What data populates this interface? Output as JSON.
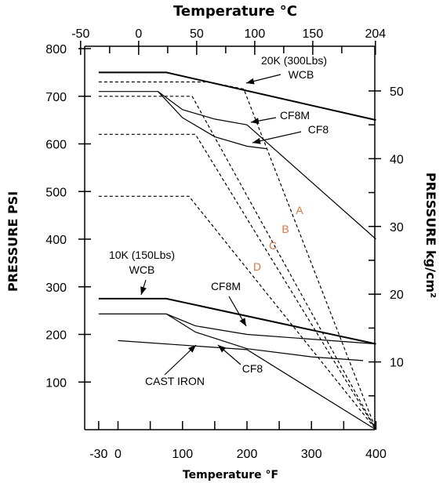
{
  "chart_data": {
    "type": "line",
    "title_top": "Temperature °C",
    "xlabel": "Temperature °F",
    "ylabel_left": "PRESSURE PSI",
    "ylabel_right": "PRESSURE kg/cm²",
    "x_range_f": [
      -40,
      400
    ],
    "y_range_psi": [
      0,
      800
    ],
    "x_ticks_f_labeled": [
      -30,
      0,
      100,
      200,
      300,
      400
    ],
    "x_ticks_f_minor": [
      50,
      150,
      250,
      350
    ],
    "y_ticks_psi_labeled": [
      100,
      200,
      300,
      400,
      500,
      600,
      700,
      800
    ],
    "x_ticks_c_labeled": [
      -50,
      0,
      50,
      100,
      150,
      204
    ],
    "y_ticks_kg_labeled": [
      10,
      20,
      30,
      40,
      50
    ],
    "series": [
      {
        "name": "20K (300Lbs) WCB",
        "style": "heavy",
        "points": [
          [
            -30,
            750
          ],
          [
            75,
            750
          ],
          [
            400,
            650
          ]
        ]
      },
      {
        "name": "20K CF8M",
        "style": "solid",
        "points": [
          [
            -30,
            710
          ],
          [
            62,
            710
          ],
          [
            100,
            672
          ],
          [
            150,
            652
          ],
          [
            200,
            640
          ],
          [
            400,
            400
          ]
        ]
      },
      {
        "name": "20K CF8",
        "style": "solid",
        "points": [
          [
            62,
            710
          ],
          [
            100,
            655
          ],
          [
            150,
            615
          ],
          [
            200,
            595
          ],
          [
            230,
            590
          ]
        ]
      },
      {
        "name": "10K (150Lbs) WCB",
        "style": "heavy",
        "points": [
          [
            -30,
            275
          ],
          [
            75,
            275
          ],
          [
            400,
            180
          ]
        ]
      },
      {
        "name": "10K CF8M",
        "style": "solid",
        "points": [
          [
            -30,
            243
          ],
          [
            75,
            243
          ],
          [
            120,
            218
          ],
          [
            200,
            200
          ],
          [
            400,
            180
          ]
        ]
      },
      {
        "name": "10K CF8",
        "style": "solid",
        "points": [
          [
            75,
            243
          ],
          [
            120,
            205
          ],
          [
            200,
            170
          ],
          [
            300,
            153
          ],
          [
            380,
            145
          ]
        ]
      },
      {
        "name": "CAST IRON",
        "style": "solid",
        "points": [
          [
            0,
            187
          ],
          [
            200,
            168
          ],
          [
            400,
            0
          ]
        ]
      },
      {
        "name": "A",
        "style": "dashed",
        "points": [
          [
            -30,
            730
          ],
          [
            140,
            730
          ],
          [
            195,
            715
          ],
          [
            400,
            0
          ]
        ]
      },
      {
        "name": "B",
        "style": "dashed",
        "points": [
          [
            -30,
            700
          ],
          [
            115,
            700
          ],
          [
            400,
            0
          ]
        ]
      },
      {
        "name": "C",
        "style": "dashed",
        "points": [
          [
            -30,
            620
          ],
          [
            120,
            620
          ],
          [
            400,
            0
          ]
        ]
      },
      {
        "name": "D",
        "style": "dashed",
        "points": [
          [
            -30,
            490
          ],
          [
            110,
            490
          ],
          [
            400,
            0
          ]
        ]
      }
    ],
    "annotations": [
      {
        "text": "20K (300Lbs)",
        "color": "#000000"
      },
      {
        "text": "WCB",
        "color": "#000000"
      },
      {
        "text": "CF8M",
        "color": "#000000"
      },
      {
        "text": "CF8",
        "color": "#000000"
      },
      {
        "text": "A",
        "color": "#e8703a"
      },
      {
        "text": "B",
        "color": "#e8703a"
      },
      {
        "text": "C",
        "color": "#e8703a"
      },
      {
        "text": "D",
        "color": "#e8703a"
      },
      {
        "text": "10K (150Lbs)",
        "color": "#000000"
      },
      {
        "text": "WCB",
        "color": "#000000"
      },
      {
        "text": "CF8M",
        "color": "#000000"
      },
      {
        "text": "CF8",
        "color": "#000000"
      },
      {
        "text": "CAST IRON",
        "color": "#000000"
      }
    ]
  }
}
